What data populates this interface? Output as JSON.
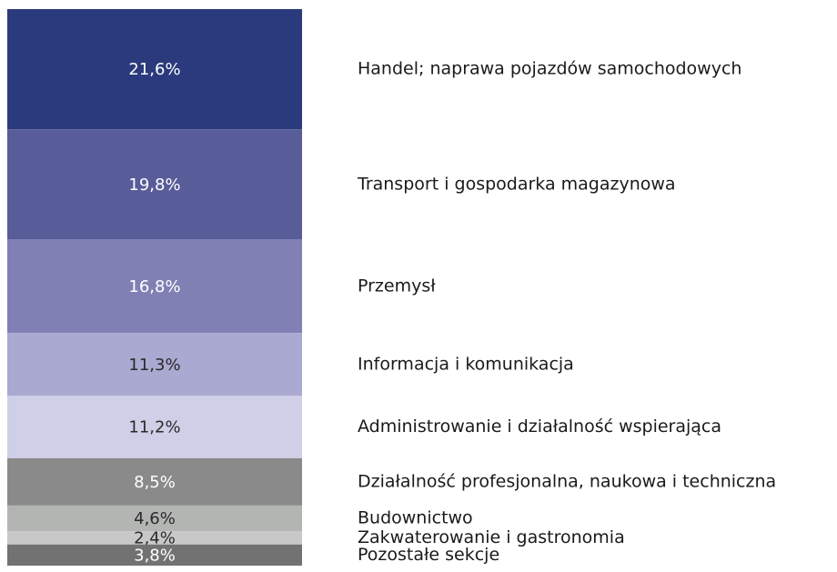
{
  "chart_data": {
    "type": "stacked-bar",
    "categories": [
      "Handel; naprawa pojazdów samochodowych",
      "Transport i gospodarka magazynowa",
      "Przemysł",
      "Informacja i komunikacja",
      "Administrowanie i działalność wspierająca",
      "Działalność profesjonalna, naukowa i techniczna",
      "Budownictwo",
      "Zakwaterowanie i gastronomia",
      "Pozostałe sekcje"
    ],
    "values": [
      21.6,
      19.8,
      16.8,
      11.3,
      11.2,
      8.5,
      4.6,
      2.4,
      3.8
    ],
    "value_labels": [
      "21,6%",
      "19,8%",
      "16,8%",
      "11,3%",
      "11,2%",
      "8,5%",
      "4,6%",
      "2,4%",
      "3,8%"
    ],
    "colors": [
      "#2b3a7c",
      "#585c99",
      "#8080b5",
      "#a9a9d1",
      "#cfcfe8",
      "#8a8a8a",
      "#b3b5b3",
      "#c8c8c8",
      "#727272"
    ]
  }
}
